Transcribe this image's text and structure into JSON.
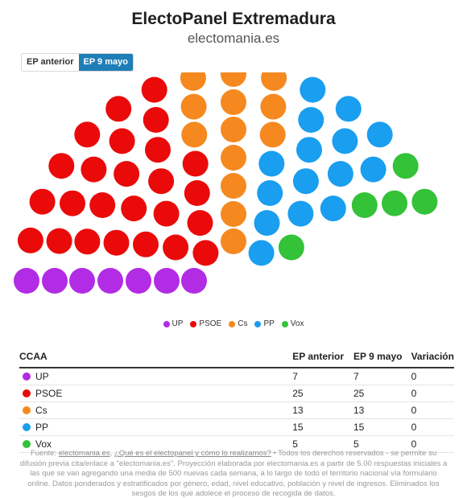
{
  "header": {
    "title": "ElectoPanel Extremadura",
    "subtitle": "electomania.es"
  },
  "toggle": {
    "previous_label": "EP anterior",
    "current_label": "EP 9 mayo"
  },
  "colors": {
    "UP": "#b12ce4",
    "PSOE": "#ea0a0a",
    "Cs": "#f5891f",
    "PP": "#1a9eef",
    "Vox": "#33c238"
  },
  "chart_data": {
    "type": "parliament",
    "total_seats": 65,
    "parties": [
      {
        "name": "UP",
        "seats": 7,
        "color": "#b12ce4"
      },
      {
        "name": "PSOE",
        "seats": 25,
        "color": "#ea0a0a"
      },
      {
        "name": "Cs",
        "seats": 13,
        "color": "#f5891f"
      },
      {
        "name": "PP",
        "seats": 15,
        "color": "#1a9eef"
      },
      {
        "name": "Vox",
        "seats": 5,
        "color": "#33c238"
      }
    ],
    "legend_position": "bottom-center"
  },
  "table": {
    "headers": {
      "name": "CCAA",
      "previous": "EP anterior",
      "current": "EP 9 mayo",
      "change": "Variación"
    },
    "rows": [
      {
        "party": "UP",
        "color": "#b12ce4",
        "previous": "7",
        "current": "7",
        "change": "0"
      },
      {
        "party": "PSOE",
        "color": "#ea0a0a",
        "previous": "25",
        "current": "25",
        "change": "0"
      },
      {
        "party": "Cs",
        "color": "#f5891f",
        "previous": "13",
        "current": "13",
        "change": "0"
      },
      {
        "party": "PP",
        "color": "#1a9eef",
        "previous": "15",
        "current": "15",
        "change": "0"
      },
      {
        "party": "Vox",
        "color": "#33c238",
        "previous": "5",
        "current": "5",
        "change": "0"
      }
    ]
  },
  "footer": {
    "source_prefix": "Fuente: ",
    "source_link": "electomania.es",
    "separator": ", ",
    "about_link": "¿Qué es el electopanel y cómo lo realizamos?",
    "body": " • Todos los derechos reservados - se permite su difusión previa cita/enlace a \"electomania.es\". Proyección elaborada por electomania.es a partir de 5.00 respuestas iniciales a las que se van agregando una media de 500 nuevas cada semana, a lo largo de todo el territorio nacional vía formulario online. Datos ponderados y estratificados por género, edad, nivel educativo, población y nivel de ingresos. Eliminados los sesgos de los que adolece el proceso de recogida de datos."
  }
}
